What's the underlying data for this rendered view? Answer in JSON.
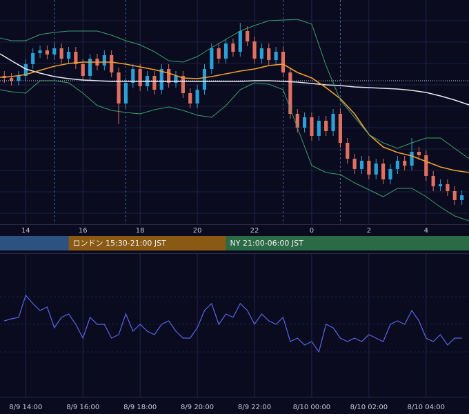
{
  "chart_data": [
    {
      "type": "candlestick",
      "xlim": [
        13.1,
        29.5
      ],
      "ylim": [
        0,
        325
      ],
      "xticks": [
        14,
        16,
        18,
        20,
        22,
        {
          "value": 24,
          "label": "0"
        },
        {
          "value": 26,
          "label": "2"
        },
        {
          "value": 28,
          "label": "4"
        }
      ],
      "yticks": [
        16,
        47,
        78,
        109,
        140,
        171,
        202,
        233,
        264,
        295
      ],
      "grid": true,
      "dashed_vlines": [
        15,
        17.5,
        23,
        25
      ],
      "price_line": 208,
      "up_color": "#2a9fd8",
      "down_color": "#e07060",
      "x": [
        13.25,
        13.5,
        13.75,
        14,
        14.25,
        14.5,
        14.75,
        15,
        15.25,
        15.5,
        15.75,
        16,
        16.25,
        16.5,
        16.75,
        17,
        17.25,
        17.5,
        17.75,
        18,
        18.25,
        18.5,
        18.75,
        19,
        19.25,
        19.5,
        19.75,
        20,
        20.25,
        20.5,
        20.75,
        21,
        21.25,
        21.5,
        21.75,
        22,
        22.25,
        22.5,
        22.75,
        23,
        23.25,
        23.5,
        23.75,
        24,
        24.25,
        24.5,
        24.75,
        25,
        25.25,
        25.5,
        25.75,
        26,
        26.25,
        26.5,
        26.75,
        27,
        27.25,
        27.5,
        27.75,
        28,
        28.25,
        28.5,
        28.75,
        29,
        29.25
      ],
      "open": [
        215,
        212,
        208,
        215,
        232,
        248,
        252,
        246,
        255,
        240,
        250,
        232,
        215,
        240,
        230,
        245,
        220,
        175,
        205,
        225,
        200,
        215,
        195,
        225,
        205,
        215,
        190,
        175,
        195,
        225,
        255,
        240,
        262,
        250,
        280,
        265,
        240,
        255,
        238,
        250,
        220,
        160,
        140,
        155,
        128,
        150,
        135,
        160,
        118,
        95,
        80,
        92,
        72,
        88,
        65,
        80,
        92,
        85,
        105,
        100,
        70,
        55,
        58,
        48,
        35
      ],
      "high": [
        222,
        219,
        222,
        239,
        255,
        259,
        259,
        262,
        262,
        257,
        257,
        239,
        247,
        247,
        252,
        252,
        227,
        212,
        232,
        232,
        222,
        222,
        232,
        232,
        222,
        222,
        197,
        202,
        232,
        262,
        262,
        269,
        269,
        292,
        287,
        272,
        262,
        262,
        257,
        257,
        227,
        167,
        162,
        162,
        157,
        157,
        167,
        167,
        125,
        102,
        99,
        99,
        95,
        95,
        87,
        99,
        99,
        125,
        112,
        107,
        77,
        65,
        65,
        55,
        49
      ],
      "low": [
        205,
        201,
        201,
        208,
        225,
        241,
        239,
        239,
        233,
        233,
        225,
        208,
        208,
        223,
        223,
        213,
        145,
        168,
        198,
        193,
        193,
        188,
        188,
        198,
        198,
        183,
        168,
        168,
        188,
        218,
        233,
        233,
        243,
        243,
        258,
        233,
        233,
        231,
        231,
        213,
        153,
        133,
        133,
        121,
        121,
        128,
        128,
        111,
        88,
        73,
        73,
        65,
        65,
        58,
        58,
        73,
        78,
        78,
        93,
        63,
        48,
        48,
        41,
        28,
        28
      ],
      "close": [
        212,
        208,
        215,
        232,
        248,
        252,
        246,
        255,
        240,
        250,
        232,
        215,
        240,
        230,
        245,
        220,
        175,
        205,
        225,
        200,
        215,
        195,
        225,
        205,
        215,
        190,
        175,
        195,
        225,
        255,
        240,
        262,
        250,
        280,
        265,
        240,
        255,
        238,
        250,
        220,
        160,
        140,
        155,
        128,
        150,
        135,
        160,
        118,
        95,
        80,
        92,
        72,
        88,
        65,
        80,
        92,
        85,
        105,
        100,
        70,
        55,
        58,
        48,
        35,
        42
      ],
      "line_x": [
        13.1,
        13.5,
        14,
        14.5,
        15,
        15.5,
        16,
        16.5,
        17,
        17.5,
        18,
        18.5,
        19,
        19.5,
        20,
        20.5,
        21,
        21.5,
        22,
        22.5,
        23,
        23.5,
        24,
        24.5,
        25,
        25.5,
        26,
        26.5,
        27,
        27.5,
        28,
        28.5,
        29,
        29.5
      ],
      "lines": [
        {
          "color": "#e8e8f0",
          "values": [
            247,
            237,
            225,
            219,
            214,
            211,
            209,
            208,
            207,
            207,
            207,
            207,
            207,
            207,
            207,
            207,
            207,
            207,
            208,
            208,
            207,
            206,
            204,
            202,
            201,
            199,
            198,
            197,
            196,
            194,
            191,
            186,
            180,
            173
          ]
        },
        {
          "color": "#f0a030",
          "values": [
            213,
            214,
            217,
            223,
            229,
            233,
            235,
            235,
            235,
            232,
            228,
            224,
            219,
            212,
            211,
            214,
            218,
            222,
            225,
            230,
            232,
            220,
            212,
            198,
            182,
            160,
            130,
            112,
            104,
            99,
            91,
            83,
            78,
            75
          ]
        },
        {
          "color": "#3aa070",
          "values": [
            270,
            266,
            266,
            275,
            278,
            280,
            280,
            280,
            274,
            266,
            260,
            250,
            237,
            235,
            243,
            256,
            268,
            280,
            288,
            295,
            296,
            297,
            290,
            230,
            180,
            155,
            130,
            118,
            110,
            118,
            125,
            125,
            110,
            95
          ]
        },
        {
          "color": "#3aa070",
          "values": [
            195,
            192,
            190,
            208,
            208,
            205,
            190,
            172,
            165,
            162,
            160,
            166,
            170,
            165,
            158,
            155,
            172,
            195,
            205,
            203,
            195,
            140,
            85,
            75,
            72,
            60,
            50,
            40,
            52,
            52,
            40,
            25,
            12,
            5
          ]
        }
      ],
      "sessions": [
        {
          "start": 13.1,
          "end": 15.5,
          "color": "#2c5282"
        },
        {
          "label": "ロンドン 15:30-21:00 JST",
          "start": 15.5,
          "end": 21,
          "color": "#8a5a14"
        },
        {
          "label": "NY 21:00-06:00 JST",
          "start": 21,
          "end": 29.5,
          "color": "#2a6a45"
        }
      ]
    },
    {
      "type": "line",
      "xlim": [
        13.1,
        29.5
      ],
      "ylim": [
        0,
        100
      ],
      "xticks": [
        {
          "value": 14,
          "label": "8/9 14:00"
        },
        {
          "value": 16,
          "label": "8/9 16:00"
        },
        {
          "value": 18,
          "label": "8/9 18:00"
        },
        {
          "value": 20,
          "label": "8/9 20:00"
        },
        {
          "value": 22,
          "label": "8/9 22:00"
        },
        {
          "value": 24,
          "label": "8/10 00:00"
        },
        {
          "value": 26,
          "label": "8/10 02:00"
        },
        {
          "value": 28,
          "label": "8/10 04:00"
        }
      ],
      "yticks": [
        30,
        50,
        70
      ],
      "grid": true,
      "color": "#5a66e8",
      "x": [
        13.25,
        13.5,
        13.75,
        14,
        14.25,
        14.5,
        14.75,
        15,
        15.25,
        15.5,
        15.75,
        16,
        16.25,
        16.5,
        16.75,
        17,
        17.25,
        17.5,
        17.75,
        18,
        18.25,
        18.5,
        18.75,
        19,
        19.25,
        19.5,
        19.75,
        20,
        20.25,
        20.5,
        20.75,
        21,
        21.25,
        21.5,
        21.75,
        22,
        22.25,
        22.5,
        22.75,
        23,
        23.25,
        23.5,
        23.75,
        24,
        24.25,
        24.5,
        24.75,
        25,
        25.25,
        25.5,
        25.75,
        26,
        26.25,
        26.5,
        26.75,
        27,
        27.25,
        27.5,
        27.75,
        28,
        28.25,
        28.5,
        28.75,
        29,
        29.25
      ],
      "values": [
        52.5,
        54,
        55,
        71,
        65,
        60,
        62.5,
        47.5,
        55,
        57.5,
        50,
        40,
        55,
        50,
        50,
        40,
        42.5,
        57.5,
        45,
        50,
        45,
        42.5,
        50,
        52.5,
        45,
        40,
        40,
        47.5,
        60,
        65,
        50,
        57.5,
        55,
        65,
        60,
        50,
        57.5,
        52.5,
        50,
        55,
        37.5,
        40,
        35,
        37.5,
        30,
        50,
        47.5,
        40,
        37.5,
        40,
        37.5,
        42.5,
        40,
        37.5,
        50,
        52.5,
        50,
        60,
        52.5,
        40,
        37.5,
        42.5,
        35,
        40,
        40
      ]
    }
  ]
}
